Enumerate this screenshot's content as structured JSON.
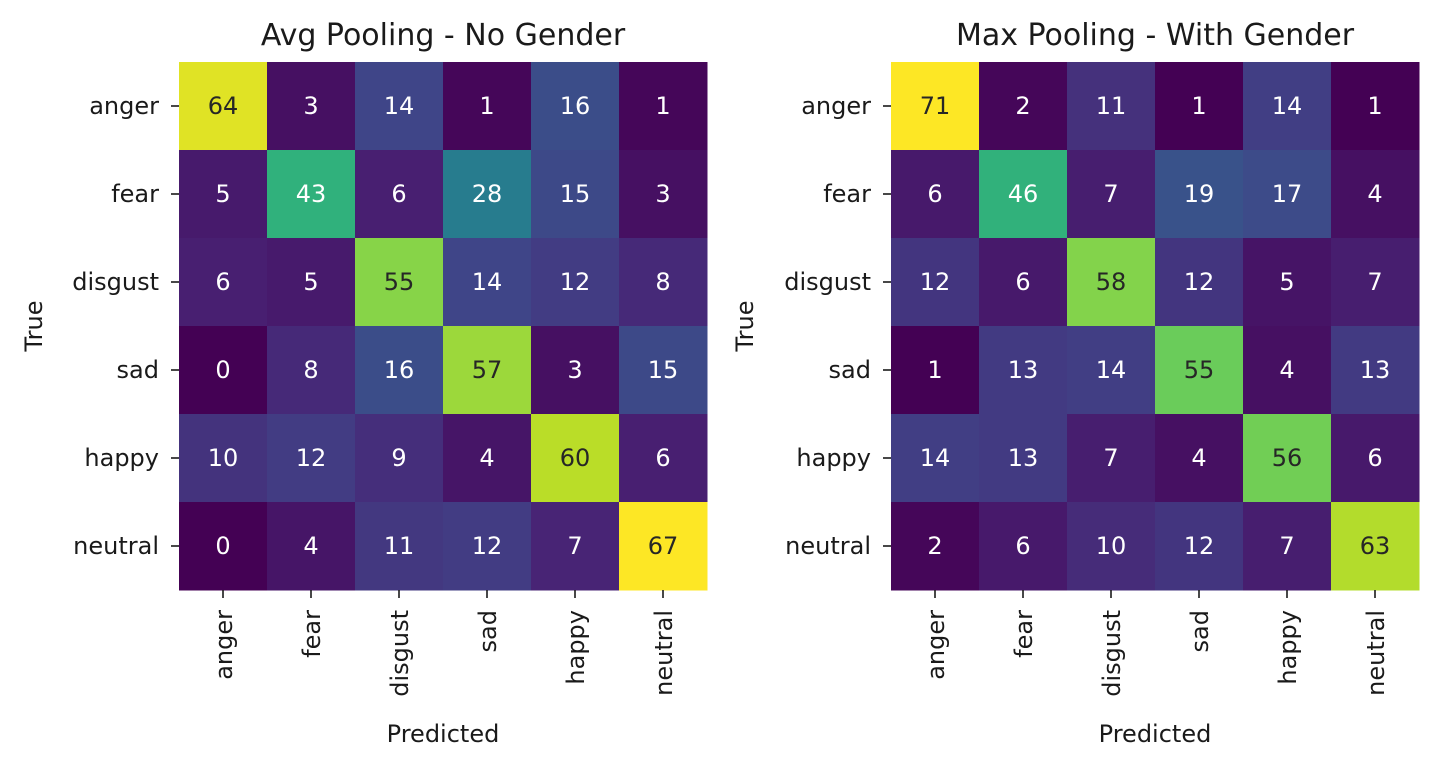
{
  "colors": {
    "colormap": "viridis",
    "dark_text": "#262626",
    "light_text": "#ffffff"
  },
  "chart_data": [
    {
      "type": "heatmap",
      "title": "Avg Pooling - No Gender",
      "xlabel": "Predicted",
      "ylabel": "True",
      "x_categories": [
        "anger",
        "fear",
        "disgust",
        "sad",
        "happy",
        "neutral"
      ],
      "y_categories": [
        "anger",
        "fear",
        "disgust",
        "sad",
        "happy",
        "neutral"
      ],
      "values": [
        [
          64,
          3,
          14,
          1,
          16,
          1
        ],
        [
          5,
          43,
          6,
          28,
          15,
          3
        ],
        [
          6,
          5,
          55,
          14,
          12,
          8
        ],
        [
          0,
          8,
          16,
          57,
          3,
          15
        ],
        [
          10,
          12,
          9,
          4,
          60,
          6
        ],
        [
          0,
          4,
          11,
          12,
          7,
          67
        ]
      ],
      "colorbar": false
    },
    {
      "type": "heatmap",
      "title": "Max Pooling - With Gender",
      "xlabel": "Predicted",
      "ylabel": "True",
      "x_categories": [
        "anger",
        "fear",
        "disgust",
        "sad",
        "happy",
        "neutral"
      ],
      "y_categories": [
        "anger",
        "fear",
        "disgust",
        "sad",
        "happy",
        "neutral"
      ],
      "values": [
        [
          71,
          2,
          11,
          1,
          14,
          1
        ],
        [
          6,
          46,
          7,
          19,
          17,
          4
        ],
        [
          12,
          6,
          58,
          12,
          5,
          7
        ],
        [
          1,
          13,
          14,
          55,
          4,
          13
        ],
        [
          14,
          13,
          7,
          4,
          56,
          6
        ],
        [
          2,
          6,
          10,
          12,
          7,
          63
        ]
      ],
      "colorbar": false
    }
  ]
}
